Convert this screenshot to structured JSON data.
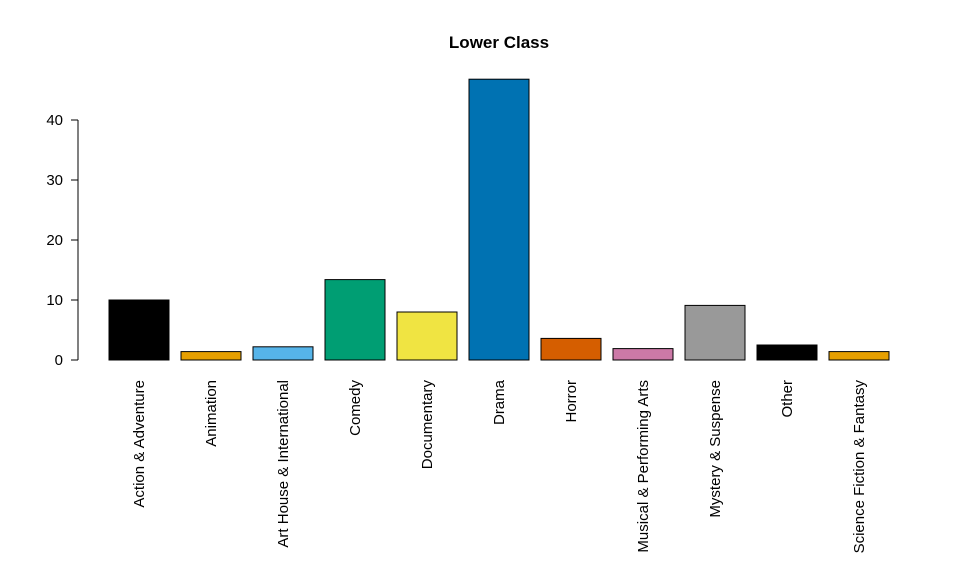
{
  "chart_data": {
    "type": "bar",
    "title": "Lower Class",
    "xlabel": "",
    "ylabel": "",
    "ylim": [
      0,
      47
    ],
    "yticks": [
      0,
      10,
      20,
      30,
      40
    ],
    "categories": [
      "Action & Adventure",
      "Animation",
      "Art House & International",
      "Comedy",
      "Documentary",
      "Drama",
      "Horror",
      "Musical & Performing Arts",
      "Mystery & Suspense",
      "Other",
      "Science Fiction & Fantasy"
    ],
    "values": [
      10.0,
      1.4,
      2.2,
      13.4,
      8.0,
      46.8,
      3.6,
      1.9,
      9.1,
      2.5,
      1.4
    ],
    "colors": [
      "#000000",
      "#E69F00",
      "#56B4E9",
      "#009E73",
      "#F0E442",
      "#0072B2",
      "#D55E00",
      "#CC79A7",
      "#999999",
      "#000000",
      "#E69F00"
    ],
    "grid": false,
    "legend": "none"
  }
}
